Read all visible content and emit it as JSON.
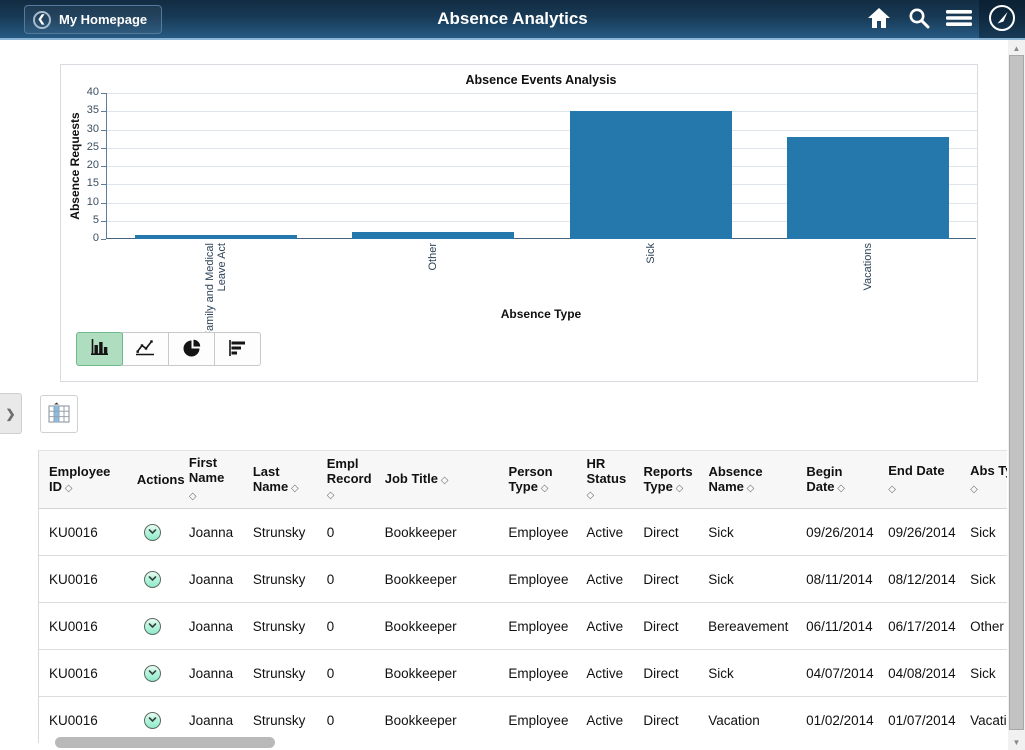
{
  "app_header": {
    "back_label": "My Homepage",
    "title": "Absence Analytics",
    "icons": {
      "home": "home-icon",
      "search": "search-icon",
      "menu": "hamburger-menu-icon",
      "navbar": "navbar-compass-icon"
    }
  },
  "chart_data": {
    "type": "bar",
    "title": "Absence Events Analysis",
    "xlabel": "Absence Type",
    "ylabel": "Absence Requests",
    "categories": [
      "Family and Medical Leave Act",
      "Other",
      "Sick",
      "Vacations"
    ],
    "values": [
      1,
      2,
      35,
      28
    ],
    "ylim": [
      0,
      40
    ],
    "ytick_step": 5,
    "grid": true,
    "legend": "none",
    "bar_color": "#2478ab"
  },
  "chart_toolbar": {
    "selected": "bar",
    "buttons": [
      {
        "type": "bar",
        "icon": "bar-chart-icon"
      },
      {
        "type": "line",
        "icon": "line-chart-icon"
      },
      {
        "type": "pie",
        "icon": "pie-chart-icon"
      },
      {
        "type": "hbar",
        "icon": "horizontal-bar-chart-icon"
      }
    ]
  },
  "side_controls": {
    "expander_glyph": "❯",
    "grid_view_icon": "grid-view-icon"
  },
  "table": {
    "sort_icon": "◇",
    "columns": [
      {
        "key": "employee_id",
        "label": "Employee ID",
        "sortable": true
      },
      {
        "key": "actions",
        "label": "Actions",
        "sortable": false
      },
      {
        "key": "first_name",
        "label": "First Name",
        "sortable": true
      },
      {
        "key": "last_name",
        "label": "Last Name",
        "sortable": true
      },
      {
        "key": "empl_record",
        "label": "Empl Record",
        "sortable": true
      },
      {
        "key": "job_title",
        "label": "Job Title",
        "sortable": true
      },
      {
        "key": "person_type",
        "label": "Person Type",
        "sortable": true
      },
      {
        "key": "hr_status",
        "label": "HR Status",
        "sortable": true
      },
      {
        "key": "reports_type",
        "label": "Reports Type",
        "sortable": true
      },
      {
        "key": "absence_name",
        "label": "Absence Name",
        "sortable": true
      },
      {
        "key": "begin_date",
        "label": "Begin Date",
        "sortable": true
      },
      {
        "key": "end_date",
        "label": "End Date",
        "sortable": true
      },
      {
        "key": "abs_type",
        "label": "Abs Type",
        "sortable": true
      }
    ],
    "rows": [
      {
        "employee_id": "KU0016",
        "first_name": "Joanna",
        "last_name": "Strunsky",
        "empl_record": "0",
        "job_title": "Bookkeeper",
        "person_type": "Employee",
        "hr_status": "Active",
        "reports_type": "Direct",
        "absence_name": "Sick",
        "begin_date": "09/26/2014",
        "end_date": "09/26/2014",
        "abs_type": "Sick"
      },
      {
        "employee_id": "KU0016",
        "first_name": "Joanna",
        "last_name": "Strunsky",
        "empl_record": "0",
        "job_title": "Bookkeeper",
        "person_type": "Employee",
        "hr_status": "Active",
        "reports_type": "Direct",
        "absence_name": "Sick",
        "begin_date": "08/11/2014",
        "end_date": "08/12/2014",
        "abs_type": "Sick"
      },
      {
        "employee_id": "KU0016",
        "first_name": "Joanna",
        "last_name": "Strunsky",
        "empl_record": "0",
        "job_title": "Bookkeeper",
        "person_type": "Employee",
        "hr_status": "Active",
        "reports_type": "Direct",
        "absence_name": "Bereavement",
        "begin_date": "06/11/2014",
        "end_date": "06/17/2014",
        "abs_type": "Other"
      },
      {
        "employee_id": "KU0016",
        "first_name": "Joanna",
        "last_name": "Strunsky",
        "empl_record": "0",
        "job_title": "Bookkeeper",
        "person_type": "Employee",
        "hr_status": "Active",
        "reports_type": "Direct",
        "absence_name": "Sick",
        "begin_date": "04/07/2014",
        "end_date": "04/08/2014",
        "abs_type": "Sick"
      },
      {
        "employee_id": "KU0016",
        "first_name": "Joanna",
        "last_name": "Strunsky",
        "empl_record": "0",
        "job_title": "Bookkeeper",
        "person_type": "Employee",
        "hr_status": "Active",
        "reports_type": "Direct",
        "absence_name": "Vacation",
        "begin_date": "01/02/2014",
        "end_date": "01/07/2014",
        "abs_type": "Vacation"
      }
    ]
  },
  "colors": {
    "header_bg": "#1b3f5e",
    "bar": "#2478ab",
    "selected_chart_button_bg": "#aeddc0",
    "action_icon_bg": "#8feccb"
  }
}
